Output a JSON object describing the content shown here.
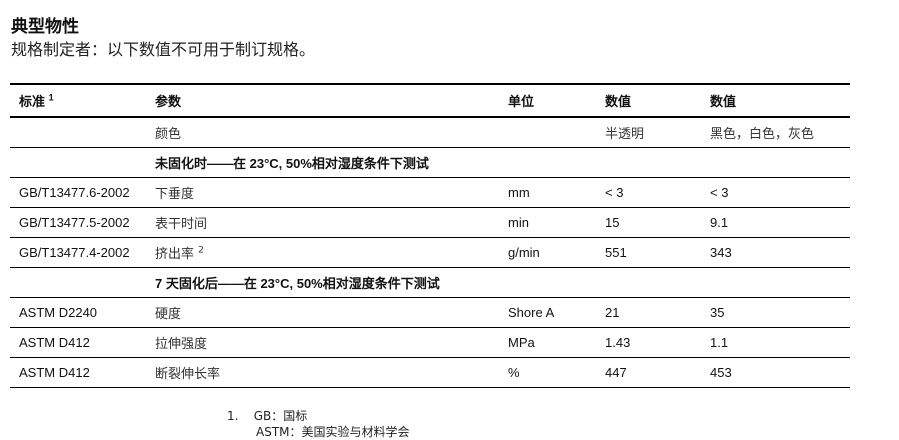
{
  "title": "典型物性",
  "subtitle": "规格制定者：以下数值不可用于制订规格。",
  "headers": [
    "标准",
    "参数",
    "单位",
    "数值",
    "数值"
  ],
  "header_sup": "1",
  "color_row": {
    "param": "颜色",
    "v1": "半透明",
    "v2": "黑色，白色，灰色"
  },
  "section1": "未固化时——在 23°C, 50%相对湿度条件下测试",
  "rows1": [
    {
      "std": "GB/T13477.6-2002",
      "param": "下垂度",
      "sup": "",
      "unit": "mm",
      "v1": "< 3",
      "v2": "< 3"
    },
    {
      "std": "GB/T13477.5-2002",
      "param": "表干时间",
      "sup": "",
      "unit": "min",
      "v1": "15",
      "v2": "9.1"
    },
    {
      "std": "GB/T13477.4-2002",
      "param": "挤出率",
      "sup": "2",
      "unit": "g/min",
      "v1": "551",
      "v2": "343"
    }
  ],
  "section2": "7 天固化后——在 23°C, 50%相对湿度条件下测试",
  "rows2": [
    {
      "std": "ASTM D2240",
      "param": "硬度",
      "unit": "Shore A",
      "v1": "21",
      "v2": "35"
    },
    {
      "std": "ASTM D412",
      "param": "拉伸强度",
      "unit": "MPa",
      "v1": "1.43",
      "v2": "1.1"
    },
    {
      "std": "ASTM D412",
      "param": "断裂伸长率",
      "unit": "%",
      "v1": "447",
      "v2": "453"
    }
  ],
  "footnotes": [
    {
      "num": "1.",
      "text": "GB：国标"
    },
    {
      "num": "",
      "text": "ASTM：美国实验与材料学会"
    }
  ]
}
